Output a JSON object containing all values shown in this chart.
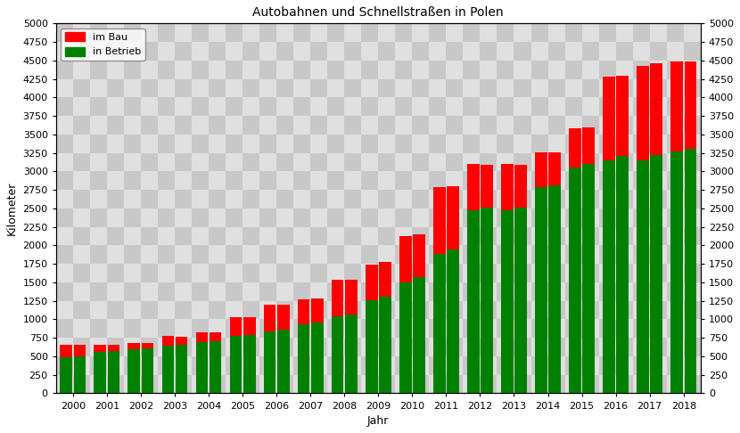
{
  "title": "Autobahnen und Schnellstraßen in Polen",
  "xlabel": "Jahr",
  "ylabel": "Kilometer",
  "years": [
    2000,
    2001,
    2002,
    2003,
    2004,
    2005,
    2006,
    2007,
    2008,
    2009,
    2010,
    2011,
    2012,
    2013,
    2014,
    2015,
    2016,
    2017,
    2018
  ],
  "in_betrieb_h1": [
    490,
    565,
    595,
    645,
    695,
    775,
    840,
    935,
    1040,
    1255,
    1500,
    1890,
    2480,
    2480,
    2785,
    3050,
    3150,
    3150,
    3270
  ],
  "in_betrieb_h2": [
    505,
    575,
    605,
    660,
    710,
    790,
    860,
    960,
    1065,
    1310,
    1570,
    1940,
    2510,
    2510,
    2815,
    3095,
    3210,
    3220,
    3310
  ],
  "im_bau_h1": [
    160,
    90,
    80,
    130,
    130,
    260,
    360,
    340,
    490,
    490,
    620,
    900,
    620,
    620,
    470,
    530,
    1130,
    1280,
    1220
  ],
  "im_bau_h2": [
    145,
    80,
    70,
    110,
    110,
    240,
    340,
    320,
    470,
    460,
    580,
    860,
    580,
    580,
    440,
    500,
    1080,
    1240,
    1180
  ],
  "color_im_bau": "#ff0000",
  "color_in_betrieb": "#008000",
  "ylim": [
    0,
    5000
  ],
  "yticks": [
    0,
    250,
    500,
    750,
    1000,
    1250,
    1500,
    1750,
    2000,
    2250,
    2500,
    2750,
    3000,
    3250,
    3500,
    3750,
    4000,
    4250,
    4500,
    4750,
    5000
  ],
  "legend_im_bau": "im Bau",
  "legend_in_betrieb": "in Betrieb",
  "check_light": "#e0e0e0",
  "check_dark": "#c8c8c8",
  "title_fontsize": 10,
  "axis_fontsize": 9,
  "tick_fontsize": 8
}
